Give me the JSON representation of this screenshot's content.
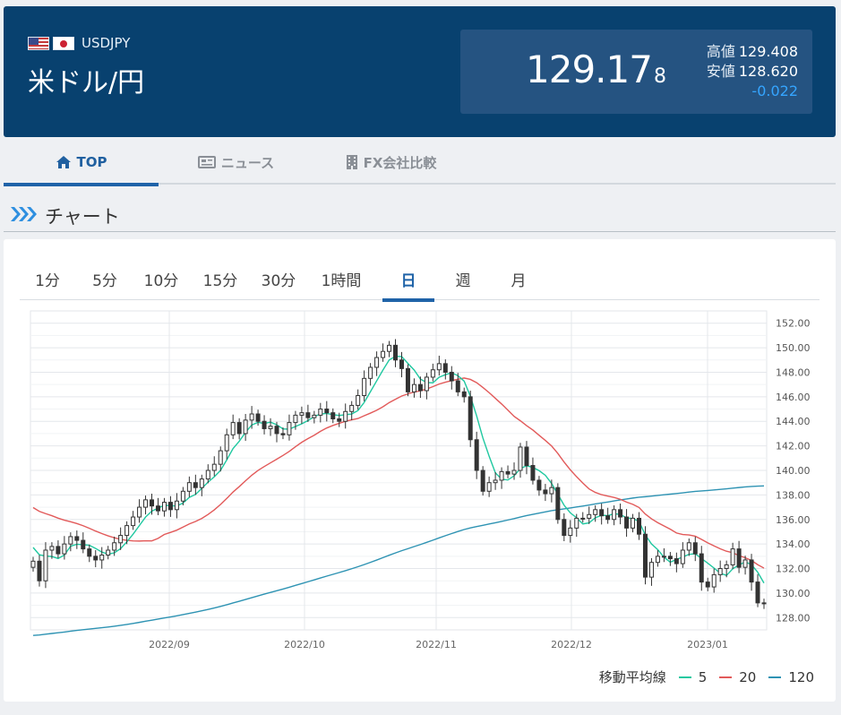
{
  "header": {
    "pair_code": "USDJPY",
    "pair_name": "米ドル/円",
    "price_main": "129.17",
    "price_tail": "8",
    "high_label": "高値",
    "high_value": "129.408",
    "low_label": "安値",
    "low_value": "128.620",
    "change": "-0.022",
    "change_color": "#35a5ff",
    "flags": [
      "us-flag-icon",
      "jp-flag-icon"
    ]
  },
  "nav": {
    "tabs": [
      {
        "label": "TOP",
        "icon": "home-icon",
        "active": true
      },
      {
        "label": "ニュース",
        "icon": "newspaper-icon",
        "active": false
      },
      {
        "label": "FX会社比較",
        "icon": "building-icon",
        "active": false
      }
    ]
  },
  "section": {
    "title": "チャート",
    "icon": "triple-chevron-icon"
  },
  "periods": [
    {
      "label": "1分",
      "active": false
    },
    {
      "label": "5分",
      "active": false
    },
    {
      "label": "10分",
      "active": false
    },
    {
      "label": "15分",
      "active": false
    },
    {
      "label": "30分",
      "active": false
    },
    {
      "label": "1時間",
      "active": false
    },
    {
      "label": "日",
      "active": true
    },
    {
      "label": "週",
      "active": false
    },
    {
      "label": "月",
      "active": false
    }
  ],
  "legend": {
    "label": "移動平均線",
    "items": [
      {
        "label": "5",
        "color": "#1fc8a0"
      },
      {
        "label": "20",
        "color": "#e25a5a"
      },
      {
        "label": "120",
        "color": "#2e93b3"
      }
    ]
  },
  "chart_data": {
    "type": "candlestick",
    "y_ticks": [
      "152.00",
      "150.00",
      "148.00",
      "146.00",
      "144.00",
      "142.00",
      "140.00",
      "138.00",
      "136.00",
      "134.00",
      "132.00",
      "130.00",
      "128.00"
    ],
    "x_ticks": [
      "2022/09",
      "2022/10",
      "2022/11",
      "2022/12",
      "2023/01"
    ],
    "ylim": [
      127,
      153
    ],
    "grid": true,
    "close": [
      132.6,
      131.0,
      133.5,
      133.8,
      133.2,
      134.0,
      134.6,
      134.3,
      133.6,
      133.0,
      132.7,
      133.1,
      133.5,
      134.1,
      134.7,
      135.5,
      136.2,
      137.0,
      137.6,
      137.1,
      136.7,
      137.4,
      136.8,
      137.5,
      138.3,
      139.0,
      138.6,
      139.3,
      140.0,
      140.5,
      141.6,
      142.9,
      143.9,
      143.0,
      144.1,
      144.6,
      144.0,
      143.4,
      143.6,
      143.0,
      142.9,
      143.9,
      144.5,
      144.7,
      144.3,
      144.5,
      145.0,
      144.7,
      144.2,
      144.0,
      144.8,
      145.3,
      146.1,
      147.5,
      148.4,
      149.2,
      149.7,
      150.2,
      149.0,
      148.3,
      146.4,
      147.0,
      146.5,
      147.6,
      148.2,
      148.7,
      148.0,
      147.3,
      146.4,
      146.0,
      142.5,
      140.0,
      138.3,
      139.0,
      139.2,
      139.9,
      139.7,
      140.0,
      141.9,
      140.4,
      139.2,
      138.4,
      138.1,
      138.6,
      136.0,
      134.7,
      135.3,
      136.1,
      136.1,
      136.4,
      136.8,
      136.3,
      136.0,
      136.8,
      136.2,
      135.3,
      136.1,
      134.8,
      131.3,
      132.5,
      133.0,
      133.0,
      132.8,
      132.4,
      133.5,
      134.1,
      133.2,
      130.9,
      130.5,
      131.5,
      132.0,
      132.3,
      133.6,
      132.1,
      132.7,
      130.9,
      129.2,
      129.178
    ]
  }
}
